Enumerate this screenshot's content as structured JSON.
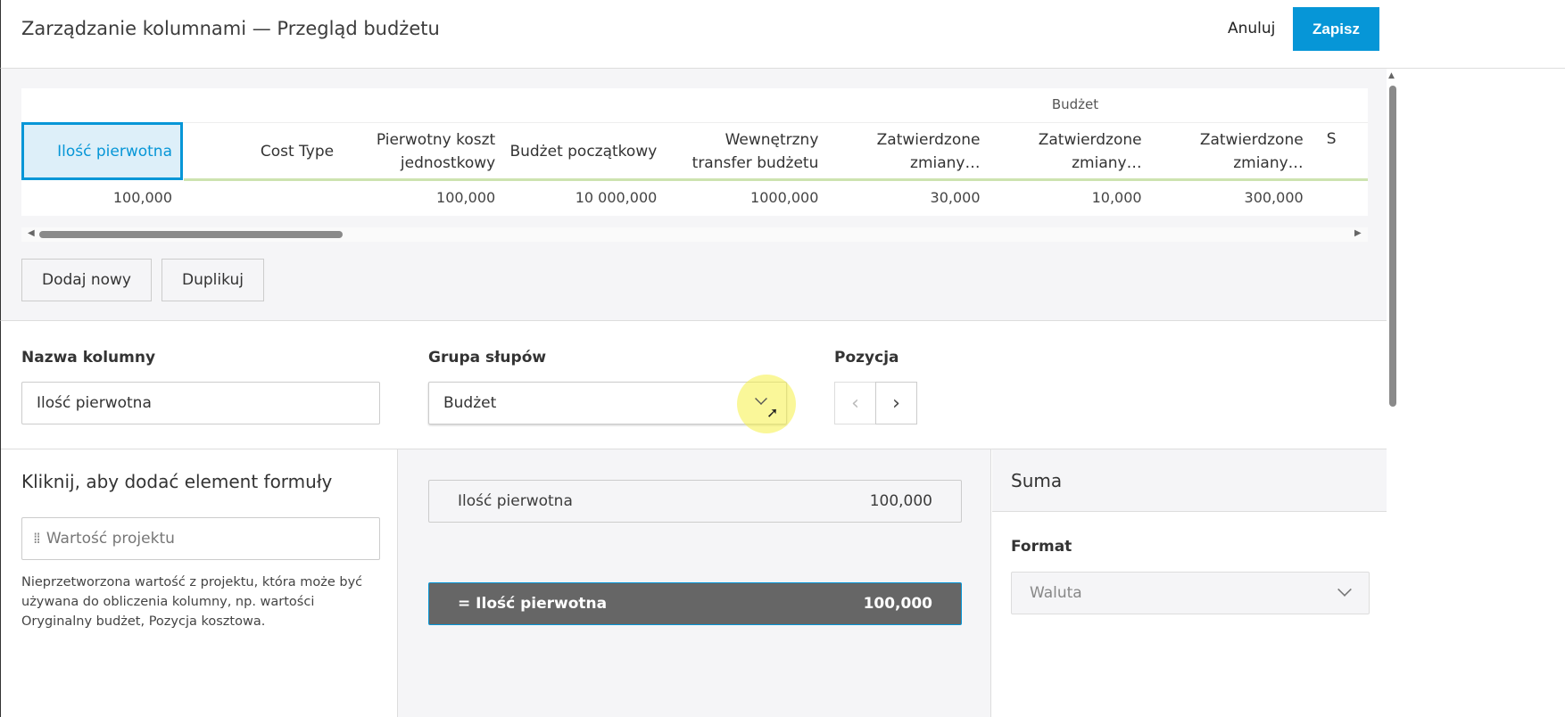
{
  "header": {
    "title": "Zarządzanie kolumnami — Przegląd budżetu",
    "cancel": "Anuluj",
    "save": "Zapisz"
  },
  "table": {
    "group_label": "Budżet",
    "columns": [
      "Ilość pierwotna",
      "Cost Type",
      "Pierwotny koszt jednostkowy",
      "Budżet początkowy",
      "Wewnętrzny transfer budżetu",
      "Zatwierdzone zmiany…",
      "Zatwierdzone zmiany…",
      "Zatwierdzone zmiany…",
      "S"
    ],
    "row": [
      "100,000",
      "",
      "100,000",
      "10 000,000",
      "1000,000",
      "30,000",
      "10,000",
      "300,000",
      ""
    ],
    "selected_column": 0
  },
  "actions": {
    "add_new": "Dodaj nowy",
    "duplicate": "Duplikuj"
  },
  "form": {
    "name_label": "Nazwa kolumny",
    "name_value": "Ilość pierwotna",
    "group_label": "Grupa słupów",
    "group_value": "Budżet",
    "position_label": "Pozycja"
  },
  "formula": {
    "title": "Kliknij, aby dodać element formuły",
    "item": "Wartość projektu",
    "description": "Nieprzetworzona wartość z projektu, która może być używana do obliczenia kolumny, np. wartości Oryginalny budżet, Pozycja kosztowa."
  },
  "expression": {
    "term_label": "Ilość pierwotna",
    "term_value": "100,000",
    "result_label": "= Ilość pierwotna",
    "result_value": "100,000"
  },
  "summary": {
    "title": "Suma",
    "format_label": "Format",
    "format_value": "Waluta"
  },
  "colors": {
    "accent": "#0696d7",
    "result_bg": "#666666",
    "selected_bg": "#ddeff9",
    "group_underline": "#cde3b0"
  }
}
